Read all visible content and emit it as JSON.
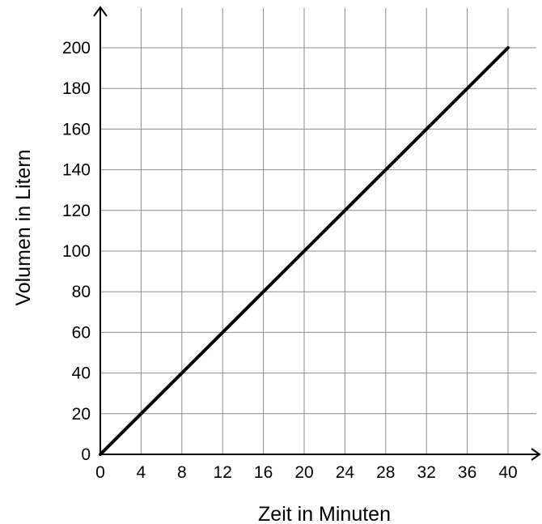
{
  "chart_data": {
    "type": "line",
    "title": "",
    "xlabel": "Zeit in Minuten",
    "ylabel": "Volumen in Litern",
    "xlim": [
      0,
      40
    ],
    "ylim": [
      0,
      200
    ],
    "x_ticks": [
      0,
      4,
      8,
      12,
      16,
      20,
      24,
      28,
      32,
      36,
      40
    ],
    "y_ticks": [
      0,
      20,
      40,
      60,
      80,
      100,
      120,
      140,
      160,
      180,
      200
    ],
    "grid": true,
    "series": [
      {
        "x": [
          0,
          40
        ],
        "y": [
          0,
          200
        ],
        "color": "#000000"
      }
    ]
  }
}
